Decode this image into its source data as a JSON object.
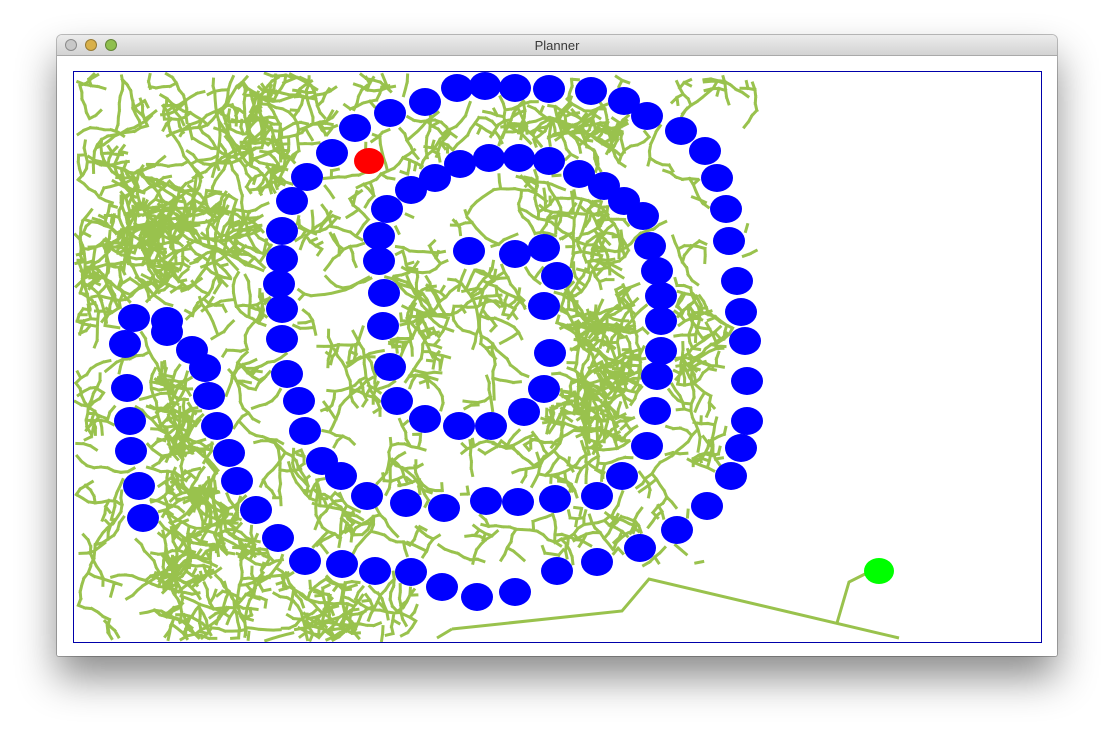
{
  "window": {
    "title": "Planner",
    "controls": {
      "close_color": "#c8c8c8",
      "minimize_color": "#d8b04a",
      "zoom_color": "#8fbf4e"
    }
  },
  "planner": {
    "frame_color": "#0000aa",
    "tree_color": "#99c24d",
    "obstacle_color": "#0000ff",
    "start_color": "#ff0000",
    "goal_color": "#00ff00",
    "start": "red-circle",
    "goal": "green-circle"
  }
}
